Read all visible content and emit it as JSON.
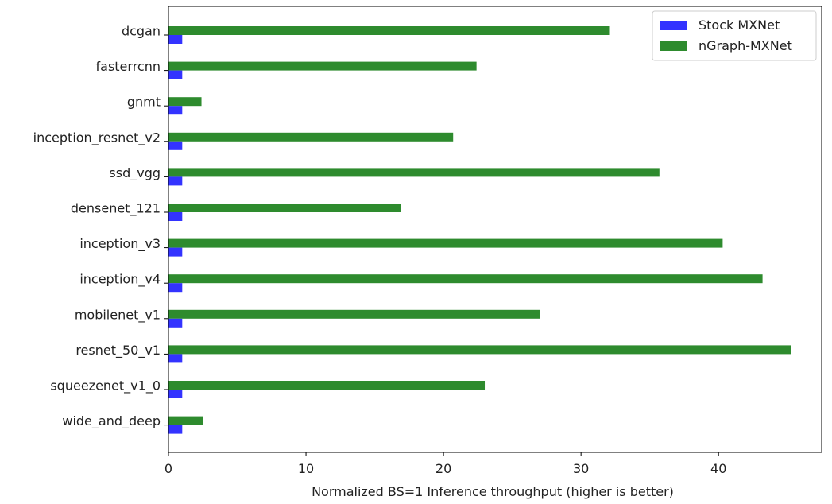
{
  "chart_data": {
    "type": "bar",
    "orientation": "horizontal",
    "title": "",
    "xlabel": "Normalized BS=1 Inference throughput (higher is better)",
    "ylabel": "",
    "xlim": [
      0,
      47.5
    ],
    "xticks": [
      0,
      10,
      20,
      30,
      40
    ],
    "grid": false,
    "legend_position": "top-right",
    "categories": [
      "dcgan",
      "fasterrcnn",
      "gnmt",
      "inception_resnet_v2",
      "ssd_vgg",
      "densenet_121",
      "inception_v3",
      "inception_v4",
      "mobilenet_v1",
      "resnet_50_v1",
      "squeezenet_v1_0",
      "wide_and_deep"
    ],
    "series": [
      {
        "name": "Stock MXNet",
        "color": "#3333ff",
        "values": [
          1,
          1,
          1,
          1,
          1,
          1,
          1,
          1,
          1,
          1,
          1,
          1
        ]
      },
      {
        "name": "nGraph-MXNet",
        "color": "#2e8b2e",
        "values": [
          32.1,
          22.4,
          2.4,
          20.7,
          35.7,
          16.9,
          40.3,
          43.2,
          27.0,
          45.3,
          23.0,
          2.5
        ]
      }
    ]
  }
}
